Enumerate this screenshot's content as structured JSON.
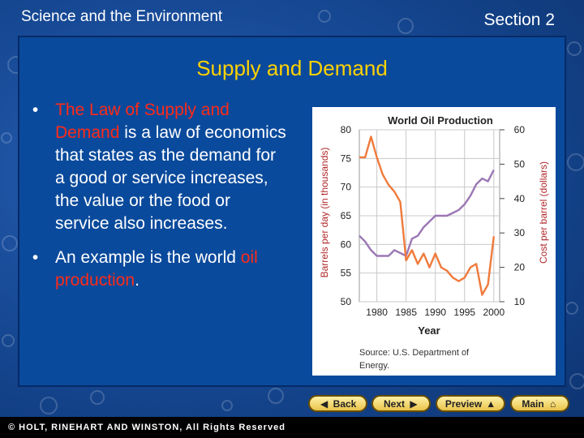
{
  "header": {
    "left": "Science and the Environment",
    "right": "Section 2"
  },
  "title": "Supply and Demand",
  "bullets": [
    {
      "red": "The Law of Supply and Demand",
      "rest": " is a law of economics that states as the demand for a good or service increases, the value or the food or service also increases."
    },
    {
      "pre": "An example is the world ",
      "red": "oil production",
      "post": "."
    }
  ],
  "nav": {
    "back": "Back",
    "next": "Next",
    "preview": "Preview",
    "main": "Main"
  },
  "footer": "© HOLT, RINEHART AND WINSTON, All Rights Reserved",
  "colors": {
    "title": "#ffd200",
    "highlight": "#ff2a18",
    "production": "#9b77b5",
    "price": "#f07a3c"
  },
  "chart_data": {
    "type": "line",
    "title": "World Oil Production",
    "xlabel": "Year",
    "ylabel": "Barrels per day (in thousands)",
    "y2label": "Cost per barrel (dollars)",
    "xlim": [
      1977,
      2001
    ],
    "ylim": [
      50,
      80
    ],
    "y2lim": [
      10,
      60
    ],
    "xticks": [
      "1980",
      "1985",
      "1990",
      "1995",
      "2000"
    ],
    "yticks": [
      "50",
      "55",
      "60",
      "65",
      "70",
      "75",
      "80"
    ],
    "y2ticks": [
      "10",
      "20",
      "30",
      "40",
      "50",
      "60"
    ],
    "source": "Source: U.S. Department of Energy.",
    "series": [
      {
        "axis": "left",
        "x": [
          1977,
          1978,
          1979,
          1980,
          1981,
          1982,
          1983,
          1984,
          1985,
          1986,
          1987,
          1988,
          1989,
          1990,
          1991,
          1992,
          1993,
          1994,
          1995,
          1996,
          1997,
          1998,
          1999,
          2000
        ],
        "values": [
          61.5,
          60.5,
          59,
          58,
          58,
          58,
          59,
          58.5,
          58,
          61,
          61.5,
          63,
          64,
          65,
          65,
          65,
          65.5,
          66,
          67,
          68.5,
          70.5,
          71.5,
          71,
          73
        ]
      },
      {
        "axis": "right",
        "x": [
          1977,
          1978,
          1979,
          1980,
          1981,
          1982,
          1983,
          1984,
          1985,
          1986,
          1987,
          1988,
          1989,
          1990,
          1991,
          1992,
          1993,
          1994,
          1995,
          1996,
          1997,
          1998,
          1999,
          2000
        ],
        "values": [
          52,
          52,
          58,
          52,
          47,
          44,
          42,
          39,
          22,
          25,
          21,
          24,
          20,
          24,
          20,
          19,
          17,
          16,
          17,
          20,
          21,
          12,
          15,
          29
        ]
      }
    ]
  }
}
